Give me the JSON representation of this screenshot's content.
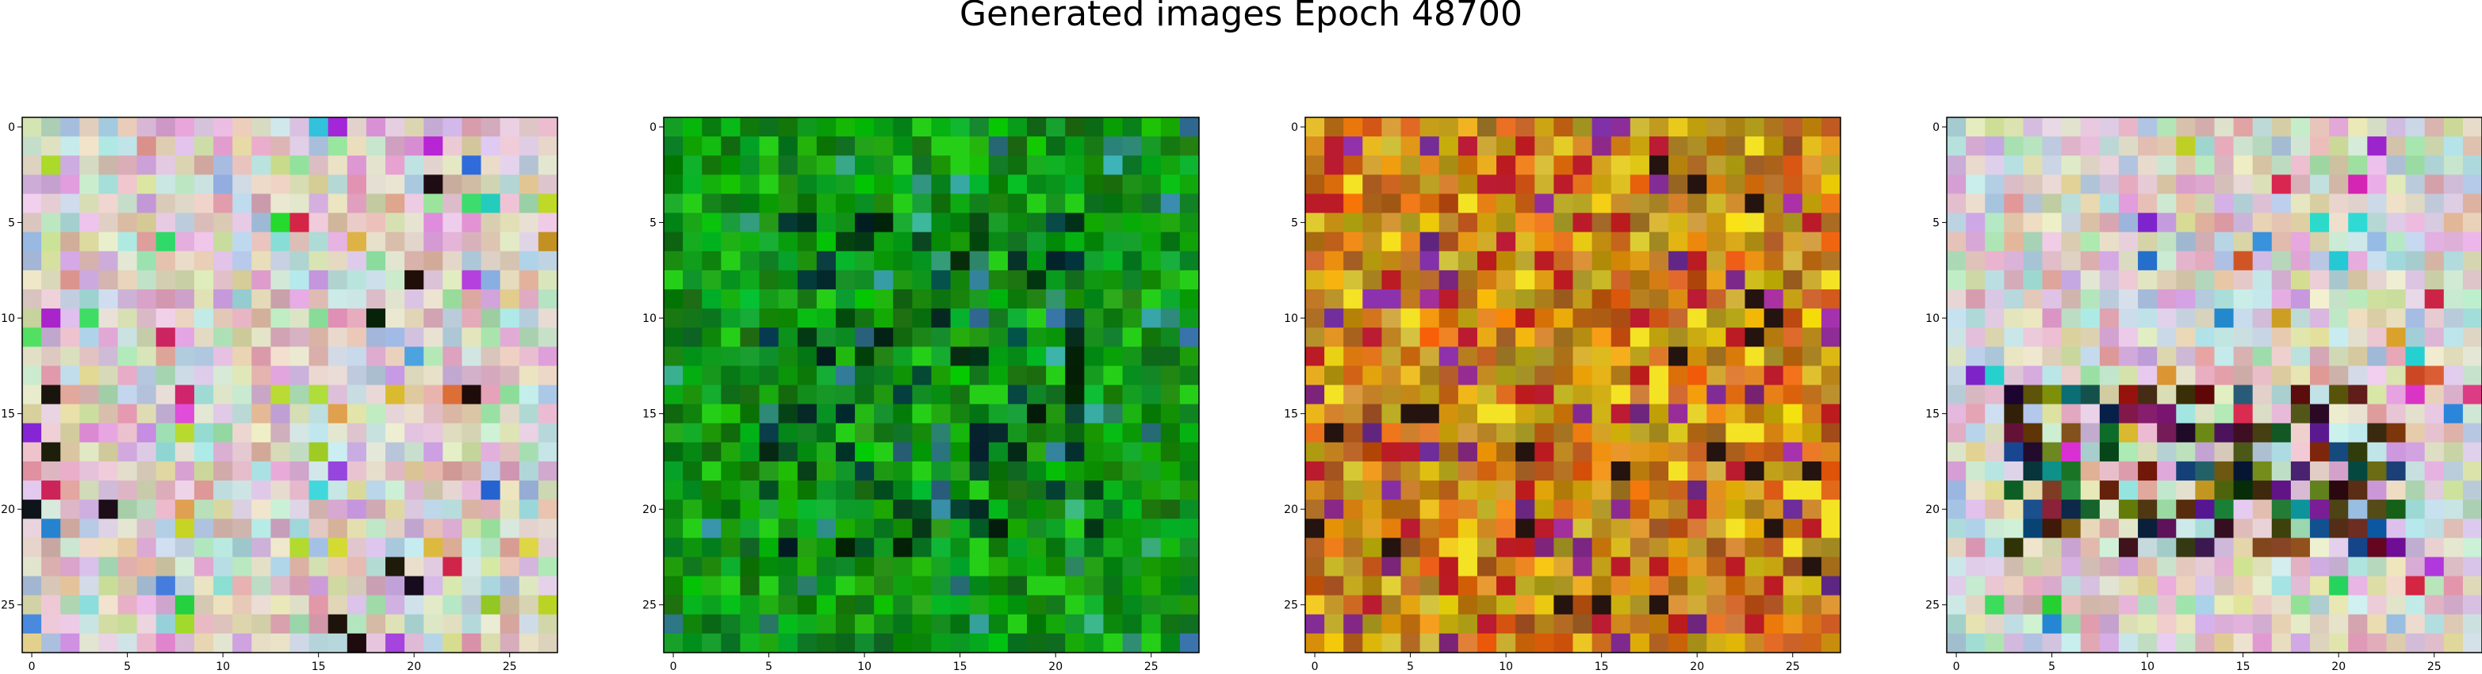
{
  "figure": {
    "title": "Generated images Epoch 48700"
  },
  "chart_data": [
    {
      "type": "heatmap",
      "grid_size": 28,
      "palette": "pastel",
      "xticks": [
        0,
        5,
        10,
        15,
        20,
        25
      ],
      "yticks": [
        0,
        5,
        10,
        15,
        20,
        25
      ],
      "xlim": [
        -0.5,
        27.5
      ],
      "ylim": [
        27.5,
        -0.5
      ]
    },
    {
      "type": "heatmap",
      "grid_size": 28,
      "palette": "green",
      "xticks": [
        0,
        5,
        10,
        15,
        20,
        25
      ],
      "yticks": [
        0,
        5,
        10,
        15,
        20,
        25
      ],
      "xlim": [
        -0.5,
        27.5
      ],
      "ylim": [
        27.5,
        -0.5
      ]
    },
    {
      "type": "heatmap",
      "grid_size": 28,
      "palette": "warm",
      "xticks": [
        0,
        5,
        10,
        15,
        20,
        25
      ],
      "yticks": [
        0,
        5,
        10,
        15,
        20,
        25
      ],
      "xlim": [
        -0.5,
        27.5
      ],
      "ylim": [
        27.5,
        -0.5
      ]
    },
    {
      "type": "heatmap",
      "grid_size": 28,
      "palette": "pastel-dark-center",
      "xticks": [
        0,
        5,
        10,
        15,
        20,
        25
      ],
      "yticks": [
        0,
        5,
        10,
        15,
        20,
        25
      ],
      "xlim": [
        -0.5,
        27.5
      ],
      "ylim": [
        27.5,
        -0.5
      ]
    }
  ]
}
